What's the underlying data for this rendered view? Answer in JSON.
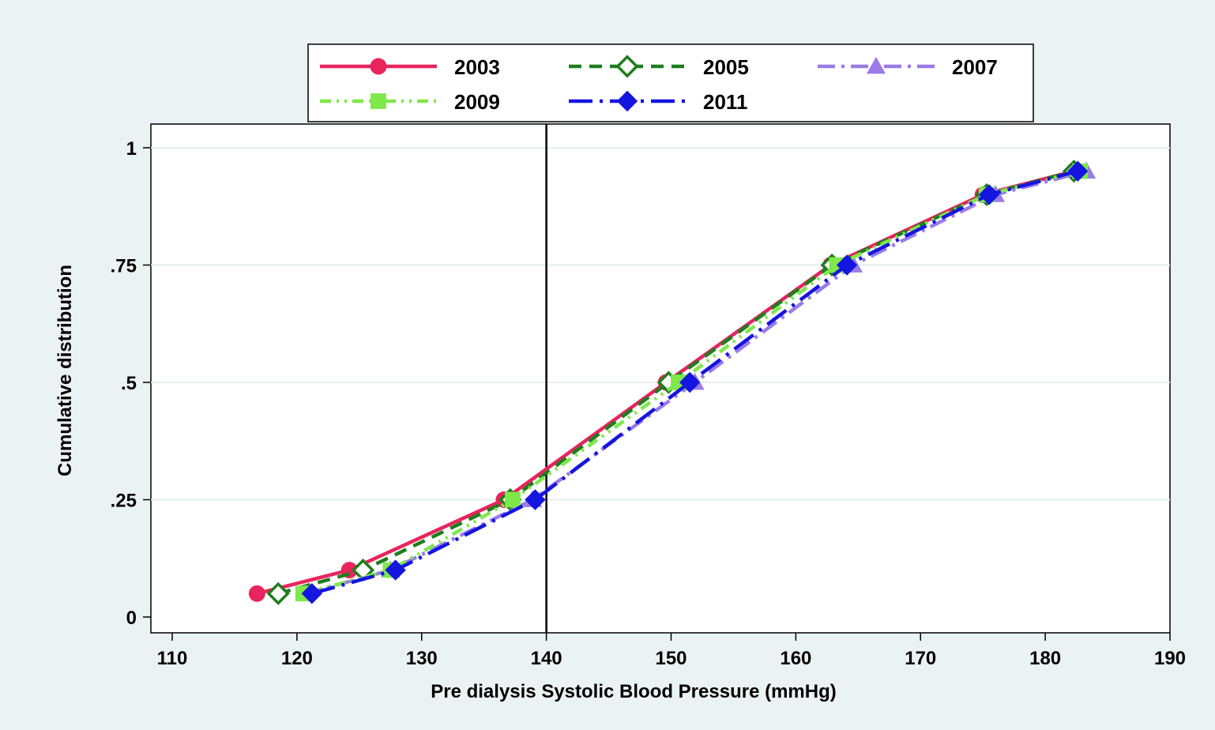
{
  "chart_data": {
    "type": "line",
    "title": "",
    "xlabel": "Pre dialysis Systolic Blood Pressure (mmHg)",
    "ylabel": "Cumulative distribution",
    "xlim": [
      110,
      190
    ],
    "ylim": [
      0,
      1
    ],
    "x_ticks": [
      110,
      120,
      130,
      140,
      150,
      160,
      170,
      180,
      190
    ],
    "y_ticks": [
      0,
      0.25,
      0.5,
      0.75,
      1
    ],
    "y_tick_labels": [
      "0",
      ".25",
      ".5",
      ".75",
      "1"
    ],
    "reference_line_x": 140,
    "grid": "horizontal",
    "legend_position": "top",
    "series": [
      {
        "name": "2003",
        "color": "#e8245e",
        "dash": "solid",
        "marker": "circle",
        "points": [
          [
            116.8,
            0.05
          ],
          [
            124.2,
            0.1
          ],
          [
            136.6,
            0.25
          ],
          [
            149.6,
            0.5
          ],
          [
            162.8,
            0.75
          ],
          [
            175.0,
            0.9
          ],
          [
            182.3,
            0.95
          ]
        ]
      },
      {
        "name": "2005",
        "color": "#1e7d1e",
        "dash": "dash",
        "marker": "diamond-hollow",
        "points": [
          [
            118.5,
            0.05
          ],
          [
            125.3,
            0.1
          ],
          [
            137.1,
            0.25
          ],
          [
            149.8,
            0.5
          ],
          [
            162.9,
            0.75
          ],
          [
            175.3,
            0.9
          ],
          [
            182.3,
            0.95
          ]
        ]
      },
      {
        "name": "2007",
        "color": "#9b7be8",
        "dash": "dashdot",
        "marker": "triangle",
        "points": [
          [
            120.7,
            0.05
          ],
          [
            127.5,
            0.1
          ],
          [
            138.9,
            0.25
          ],
          [
            151.9,
            0.5
          ],
          [
            164.6,
            0.75
          ],
          [
            176.0,
            0.9
          ],
          [
            183.3,
            0.95
          ]
        ]
      },
      {
        "name": "2009",
        "color": "#7fe84b",
        "dash": "dashdotdot",
        "marker": "square",
        "points": [
          [
            120.5,
            0.05
          ],
          [
            127.5,
            0.1
          ],
          [
            137.3,
            0.25
          ],
          [
            150.6,
            0.5
          ],
          [
            163.3,
            0.75
          ],
          [
            175.3,
            0.9
          ],
          [
            182.8,
            0.95
          ]
        ]
      },
      {
        "name": "2011",
        "color": "#1515e0",
        "dash": "longdash",
        "marker": "diamond",
        "points": [
          [
            121.2,
            0.05
          ],
          [
            127.9,
            0.1
          ],
          [
            139.1,
            0.25
          ],
          [
            151.5,
            0.5
          ],
          [
            164.1,
            0.75
          ],
          [
            175.5,
            0.9
          ],
          [
            182.6,
            0.95
          ]
        ]
      }
    ]
  }
}
